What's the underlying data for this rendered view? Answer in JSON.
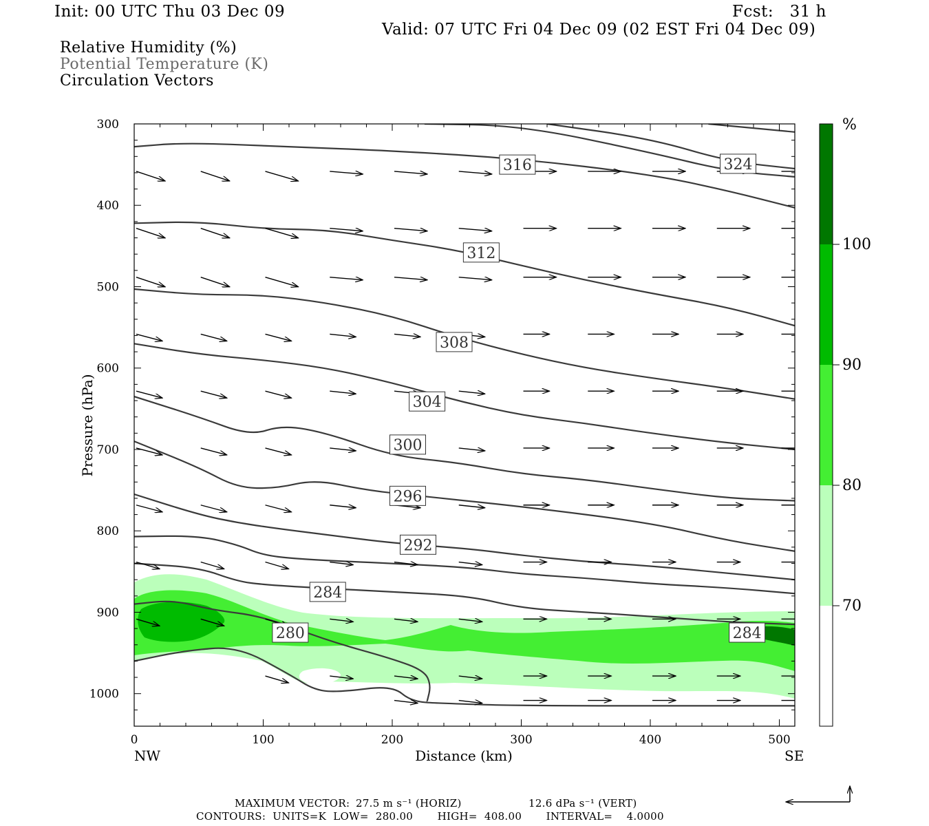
{
  "header": {
    "init": "Init: 00 UTC Thu 03 Dec 09",
    "fcst": "Fcst:   31 h",
    "valid": "Valid: 07 UTC Fri 04 Dec 09 (02 EST Fri 04 Dec 09)"
  },
  "legend": {
    "rh": "Relative Humidity (%)",
    "theta": "Potential Temperature (K)",
    "vectors": "Circulation Vectors"
  },
  "footer": {
    "max_vector_label": "MAXIMUM VECTOR:",
    "max_horiz": "27.5 m s⁻¹ (HORIZ)",
    "max_vert": "12.6 dPa s⁻¹ (VERT)",
    "contours": "CONTOURS:  UNITS=K  LOW=  280.00       HIGH=  408.00       INTERVAL=    4.0000"
  },
  "colors": {
    "rh_70_80": "#bbffbb",
    "rh_80_90": "#44ee33",
    "rh_90_100": "#00bb00",
    "rh_100_plus": "#007700",
    "theta_line": "#3a3a3a"
  },
  "chart_data": {
    "type": "cross-section",
    "xlabel": "Distance (km)",
    "ylabel": "Pressure (hPa)",
    "xlim": [
      0,
      512
    ],
    "ylim": [
      1040,
      300
    ],
    "x_ticks": [
      "0",
      "100",
      "200",
      "300",
      "400",
      "500"
    ],
    "y_ticks": [
      "300",
      "400",
      "500",
      "600",
      "700",
      "800",
      "900",
      "1000"
    ],
    "x_ends": [
      "NW",
      "SE"
    ],
    "colorbar": {
      "unit": "%",
      "levels": [
        "70",
        "80",
        "90",
        "100"
      ]
    },
    "theta_labels": [
      {
        "text": "316",
        "km": 297,
        "hPa": 350
      },
      {
        "text": "324",
        "km": 468,
        "hPa": 349
      },
      {
        "text": "312",
        "km": 269,
        "hPa": 458
      },
      {
        "text": "308",
        "km": 248,
        "hPa": 568
      },
      {
        "text": "304",
        "km": 227,
        "hPa": 641
      },
      {
        "text": "300",
        "km": 212,
        "hPa": 694
      },
      {
        "text": "296",
        "km": 212,
        "hPa": 757
      },
      {
        "text": "292",
        "km": 220,
        "hPa": 817
      },
      {
        "text": "284",
        "km": 150,
        "hPa": 875
      },
      {
        "text": "280",
        "km": 121,
        "hPa": 925
      },
      {
        "text": "284",
        "km": 475,
        "hPa": 925
      }
    ],
    "theta_contours": [
      [
        [
          0,
          328
        ],
        [
          40,
          323
        ],
        [
          120,
          328
        ],
        [
          200,
          333
        ],
        [
          300,
          343
        ],
        [
          400,
          362
        ],
        [
          460,
          382
        ],
        [
          512,
          403
        ]
      ],
      [
        [
          225,
          300
        ],
        [
          300,
          302
        ],
        [
          400,
          335
        ],
        [
          460,
          358
        ],
        [
          512,
          365
        ]
      ],
      [
        [
          320,
          300
        ],
        [
          400,
          318
        ],
        [
          460,
          346
        ],
        [
          512,
          355
        ]
      ],
      [
        [
          445,
          300
        ],
        [
          512,
          310
        ]
      ],
      [
        [
          0,
          422
        ],
        [
          50,
          420
        ],
        [
          100,
          429
        ],
        [
          150,
          430
        ],
        [
          200,
          443
        ],
        [
          250,
          455
        ],
        [
          300,
          474
        ],
        [
          350,
          492
        ],
        [
          400,
          508
        ],
        [
          460,
          525
        ],
        [
          512,
          548
        ]
      ],
      [
        [
          0,
          503
        ],
        [
          50,
          510
        ],
        [
          100,
          510
        ],
        [
          150,
          520
        ],
        [
          200,
          536
        ],
        [
          250,
          562
        ],
        [
          300,
          583
        ],
        [
          350,
          600
        ],
        [
          400,
          612
        ],
        [
          460,
          625
        ],
        [
          512,
          638
        ]
      ],
      [
        [
          0,
          570
        ],
        [
          50,
          583
        ],
        [
          100,
          590
        ],
        [
          150,
          600
        ],
        [
          200,
          618
        ],
        [
          250,
          640
        ],
        [
          300,
          658
        ],
        [
          350,
          668
        ],
        [
          400,
          680
        ],
        [
          460,
          692
        ],
        [
          512,
          700
        ]
      ],
      [
        [
          0,
          635
        ],
        [
          50,
          660
        ],
        [
          90,
          683
        ],
        [
          115,
          670
        ],
        [
          150,
          680
        ],
        [
          200,
          708
        ],
        [
          250,
          716
        ],
        [
          300,
          730
        ],
        [
          350,
          737
        ],
        [
          400,
          748
        ],
        [
          460,
          760
        ],
        [
          512,
          763
        ]
      ],
      [
        [
          0,
          690
        ],
        [
          50,
          722
        ],
        [
          80,
          747
        ],
        [
          110,
          748
        ],
        [
          140,
          737
        ],
        [
          180,
          750
        ],
        [
          220,
          757
        ],
        [
          300,
          770
        ],
        [
          400,
          790
        ],
        [
          460,
          812
        ],
        [
          512,
          825
        ]
      ],
      [
        [
          0,
          755
        ],
        [
          50,
          780
        ],
        [
          80,
          790
        ],
        [
          110,
          797
        ],
        [
          150,
          805
        ],
        [
          200,
          815
        ],
        [
          260,
          822
        ],
        [
          300,
          830
        ],
        [
          350,
          838
        ],
        [
          400,
          843
        ],
        [
          460,
          852
        ],
        [
          512,
          860
        ]
      ],
      [
        [
          0,
          807
        ],
        [
          50,
          806
        ],
        [
          80,
          817
        ],
        [
          100,
          830
        ],
        [
          130,
          835
        ],
        [
          200,
          840
        ],
        [
          260,
          845
        ],
        [
          300,
          853
        ],
        [
          350,
          858
        ],
        [
          400,
          865
        ],
        [
          460,
          870
        ],
        [
          512,
          877
        ]
      ],
      [
        [
          0,
          840
        ],
        [
          50,
          845
        ],
        [
          80,
          862
        ],
        [
          100,
          866
        ],
        [
          140,
          870
        ],
        [
          200,
          875
        ],
        [
          260,
          880
        ],
        [
          300,
          895
        ],
        [
          350,
          900
        ],
        [
          400,
          905
        ],
        [
          460,
          912
        ],
        [
          512,
          915
        ]
      ],
      [
        [
          0,
          890
        ],
        [
          30,
          885
        ],
        [
          60,
          897
        ],
        [
          100,
          905
        ],
        [
          150,
          935
        ],
        [
          200,
          957
        ],
        [
          225,
          972
        ],
        [
          230,
          990
        ],
        [
          227,
          1010
        ]
      ],
      [
        [
          0,
          960
        ],
        [
          40,
          947
        ],
        [
          80,
          942
        ],
        [
          120,
          976
        ],
        [
          140,
          996
        ],
        [
          160,
          998
        ],
        [
          200,
          990
        ],
        [
          215,
          1010
        ],
        [
          240,
          1012
        ],
        [
          300,
          1015
        ],
        [
          512,
          1015
        ]
      ]
    ],
    "vectors": [
      [
        [
          10,
          355
        ],
        [
          25,
          322
        ],
        [
          40,
          364
        ],
        [
          55,
          382
        ],
        [
          70,
          358
        ],
        [
          90,
          362
        ],
        [
          110,
          358
        ],
        [
          135,
          352
        ],
        [
          155,
          375
        ],
        [
          180,
          363
        ],
        [
          205,
          366
        ],
        [
          220,
          377
        ],
        [
          250,
          370
        ],
        [
          280,
          375
        ],
        [
          300,
          380
        ],
        [
          330,
          385
        ],
        [
          355,
          390
        ],
        [
          380,
          390
        ],
        [
          405,
          398
        ],
        [
          425,
          385
        ],
        [
          460,
          390
        ],
        [
          485,
          380
        ],
        [
          500,
          380
        ]
      ]
    ]
  }
}
